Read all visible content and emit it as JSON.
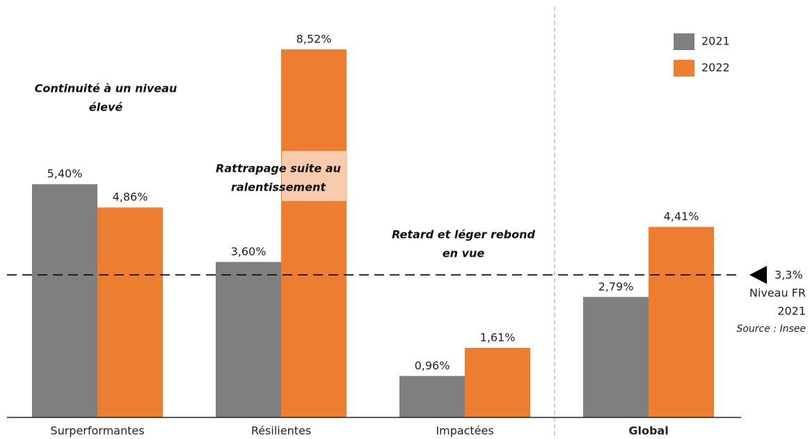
{
  "chart_data": {
    "type": "bar",
    "categories": [
      "Surperformantes",
      "Résilientes",
      "Impactées",
      "Global"
    ],
    "series": [
      {
        "name": "2021",
        "color": "#7f7f7f",
        "values": [
          5.4,
          3.6,
          0.96,
          2.79
        ],
        "value_labels": [
          "5,40%",
          "3,60%",
          "0,96%",
          "2,79%"
        ]
      },
      {
        "name": "2022",
        "color": "#ed7d31",
        "values": [
          4.86,
          8.52,
          1.61,
          4.41
        ],
        "value_labels": [
          "4,86%",
          "8,52%",
          "1,61%",
          "4,41%"
        ]
      }
    ],
    "annotations": [
      [
        "Continuité à un niveau",
        "élevé"
      ],
      [
        "Rattrapage suite au",
        "ralentissement"
      ],
      [
        "Retard et léger rebond",
        "en vue"
      ]
    ],
    "reference_line": {
      "value": 3.3,
      "label": "3,3%",
      "text": [
        "Niveau FR",
        "2021"
      ],
      "source": "Source : Insee"
    }
  }
}
